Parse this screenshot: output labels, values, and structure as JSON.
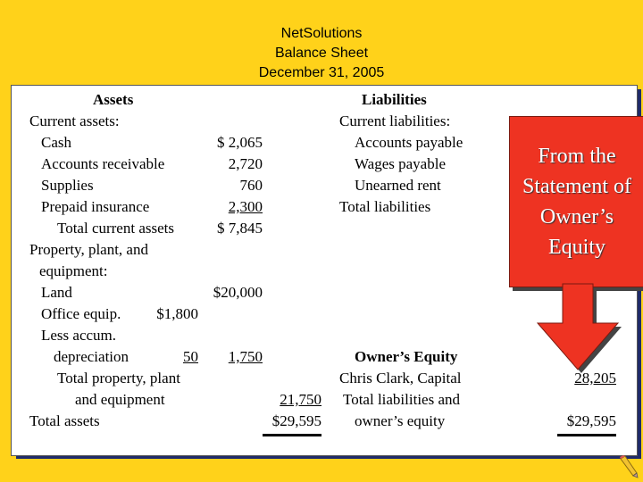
{
  "header": {
    "company": "NetSolutions",
    "statement": "Balance Sheet",
    "date": "December 31, 2005"
  },
  "assets": {
    "heading": "Assets",
    "current_heading": "Current assets:",
    "cash_label": "Cash",
    "cash_value": "$  2,065",
    "ar_label": "Accounts receivable",
    "ar_value": "2,720",
    "supplies_label": "Supplies",
    "supplies_value": "760",
    "prepaid_label": "Prepaid insurance",
    "prepaid_value": "2,300",
    "total_current_label": "Total current assets",
    "total_current_value": "$  7,845",
    "ppe_heading_1": "Property, plant, and",
    "ppe_heading_2": "equipment:",
    "land_label": "Land",
    "land_value": "$20,000",
    "office_label": "Office equip.",
    "office_value": "$1,800",
    "less_accum_label": "Less accum.",
    "depreciation_label": "depreciation",
    "depreciation_value": "50",
    "net_office_value": "1,750",
    "total_ppe_label_1": "Total property, plant",
    "total_ppe_label_2": "and equipment",
    "total_ppe_value": "21,750",
    "total_assets_label": "Total assets",
    "total_assets_value": "$29,595"
  },
  "liabilities": {
    "heading": "Liabilities",
    "current_heading": "Current liabilities:",
    "ap_label": "Accounts payable",
    "wages_label": "Wages payable",
    "unearned_label": "Unearned rent",
    "total_label": "Total liabilities"
  },
  "equity": {
    "heading": "Owner’s Equity",
    "capital_label": "Chris Clark, Capital",
    "capital_value": "28,205",
    "total_le_label_1": "Total liabilities and",
    "total_le_label_2": "owner’s equity",
    "total_le_value": "$29,595"
  },
  "callout": {
    "text": "From the Statement of Owner’s Equity",
    "color": "#ee3322"
  },
  "icons": {
    "arrow": "down-arrow-icon",
    "pencil": "pencil-icon"
  }
}
